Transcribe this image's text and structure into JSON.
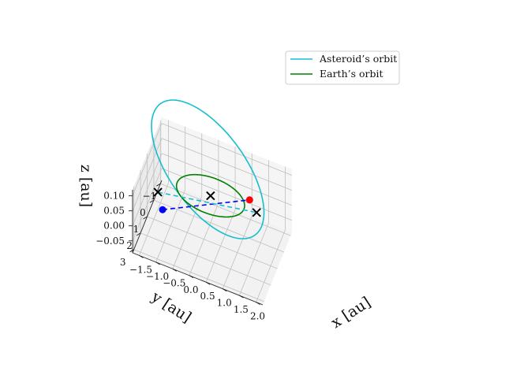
{
  "chart_data": {
    "type": "line3d",
    "title": "",
    "xlabel": "x [au]",
    "ylabel": "y [au]",
    "zlabel": "z [au]",
    "xlim": [
      -1.7,
      2.2
    ],
    "ylim": [
      -1.2,
      3.2
    ],
    "zlim": [
      -0.09,
      0.12
    ],
    "x_ticks": [
      "−1.5",
      "−1.0",
      "−0.5",
      "0.0",
      "0.5",
      "1.0",
      "1.5",
      "2.0"
    ],
    "x_tick_values": [
      -1.5,
      -1.0,
      -0.5,
      0.0,
      0.5,
      1.0,
      1.5,
      2.0
    ],
    "y_ticks": [
      "−1",
      "0",
      "1",
      "2",
      "3"
    ],
    "y_tick_values": [
      -1,
      0,
      1,
      2,
      3
    ],
    "z_ticks": [
      "−0.05",
      "0.00",
      "0.05",
      "0.10"
    ],
    "z_tick_values": [
      -0.05,
      0.0,
      0.05,
      0.1
    ],
    "grid": true,
    "legend_position": "top-right",
    "series": [
      {
        "name": "Asteroid’s orbit",
        "color": "#17becf",
        "kind": "ellipse",
        "a": 1.85,
        "e": 0.45,
        "inc_deg": 3.6,
        "node_deg": 113,
        "peri_deg": 320
      },
      {
        "name": "Earth’s orbit",
        "color": "#008000",
        "kind": "circle",
        "radius": 1.0
      }
    ],
    "points": [
      {
        "name": "asteroid-perihelion-marker",
        "x": -1.0,
        "y": 2.2,
        "z": 0.03,
        "color": "#0000ff",
        "marker": "dot"
      },
      {
        "name": "asteroid-node-marker",
        "x": -1.1,
        "y": 2.4,
        "z": 0.095,
        "color": "#000000",
        "marker": "x"
      },
      {
        "name": "sun-position-marker",
        "x": 0.0,
        "y": 0.0,
        "z": 0.0,
        "color": "#000000",
        "marker": "x"
      },
      {
        "name": "earth-position-marker",
        "x": 1.05,
        "y": -0.6,
        "z": 0.0,
        "color": "#ff0000",
        "marker": "dot"
      },
      {
        "name": "earth-opposite-marker",
        "x": 1.3,
        "y": -0.4,
        "z": -0.02,
        "color": "#000000",
        "marker": "x"
      }
    ],
    "dashed_lines": [
      {
        "name": "asteroid-earth-link",
        "color": "#0000ff",
        "from": [
          -1.0,
          2.2,
          0.03
        ],
        "to": [
          1.05,
          -0.6,
          0.0
        ]
      },
      {
        "name": "node-projection-line",
        "color": "#17becf",
        "from": [
          -1.1,
          2.4,
          0.095
        ],
        "to": [
          1.3,
          -0.4,
          -0.02
        ]
      }
    ]
  }
}
